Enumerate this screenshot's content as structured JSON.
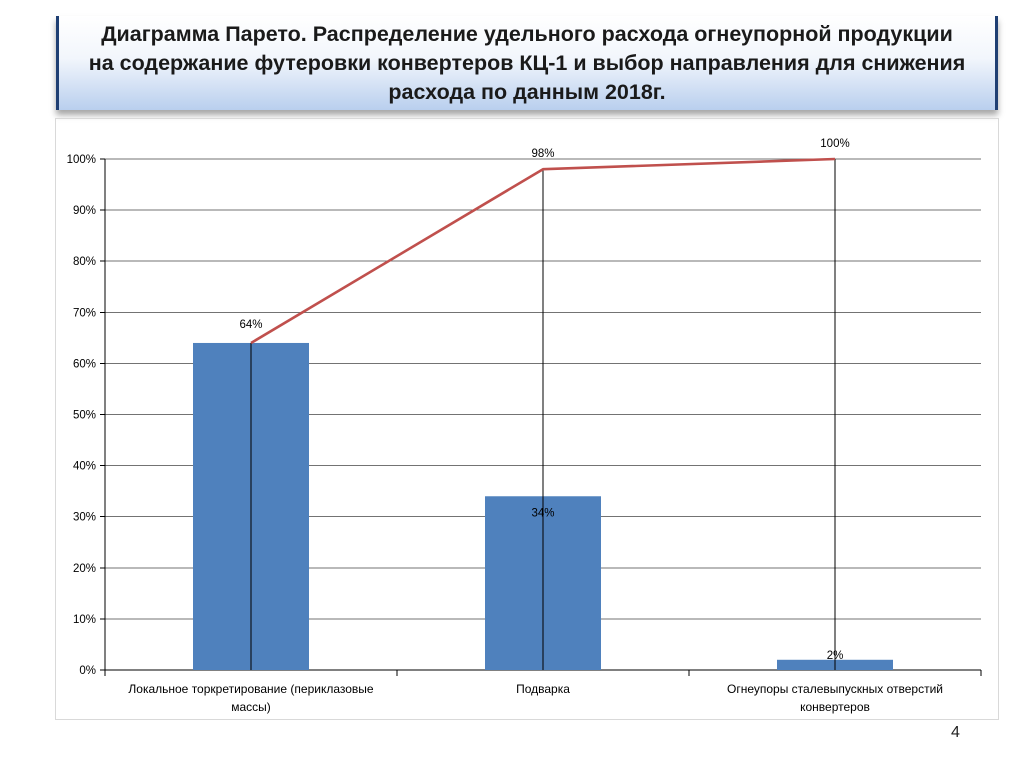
{
  "slide": {
    "title_line1": "Диаграмма Парето. Распределение  удельного расхода огнеупорной продукции",
    "title_line2": "на содержание футеровки конвертеров КЦ-1 и выбор направления для снижения",
    "title_line3": "расхода по данным 2018г.",
    "page_number": "4"
  },
  "colors": {
    "bar": "#4f81bd",
    "line": "#c0504d",
    "grid": "#000000",
    "text": "#000000"
  },
  "chart_data": {
    "type": "bar",
    "title": "",
    "xlabel": "",
    "ylabel": "",
    "ylim": [
      0,
      100
    ],
    "yticks": [
      "0%",
      "10%",
      "20%",
      "30%",
      "40%",
      "50%",
      "60%",
      "70%",
      "80%",
      "90%",
      "100%"
    ],
    "categories": [
      [
        "Локальное торкретирование (периклазовые",
        "массы)"
      ],
      [
        "Подварка"
      ],
      [
        "Огнеупоры сталевыпускных отверстий",
        "конвертеров"
      ]
    ],
    "series": [
      {
        "kind": "bar",
        "values": [
          64,
          34,
          2
        ],
        "labels": [
          "64%",
          "34%",
          "2%"
        ]
      },
      {
        "kind": "line",
        "values": [
          64,
          98,
          100
        ],
        "labels": [
          "",
          "98%",
          "100%"
        ]
      }
    ],
    "grid": true,
    "legend": "none"
  }
}
